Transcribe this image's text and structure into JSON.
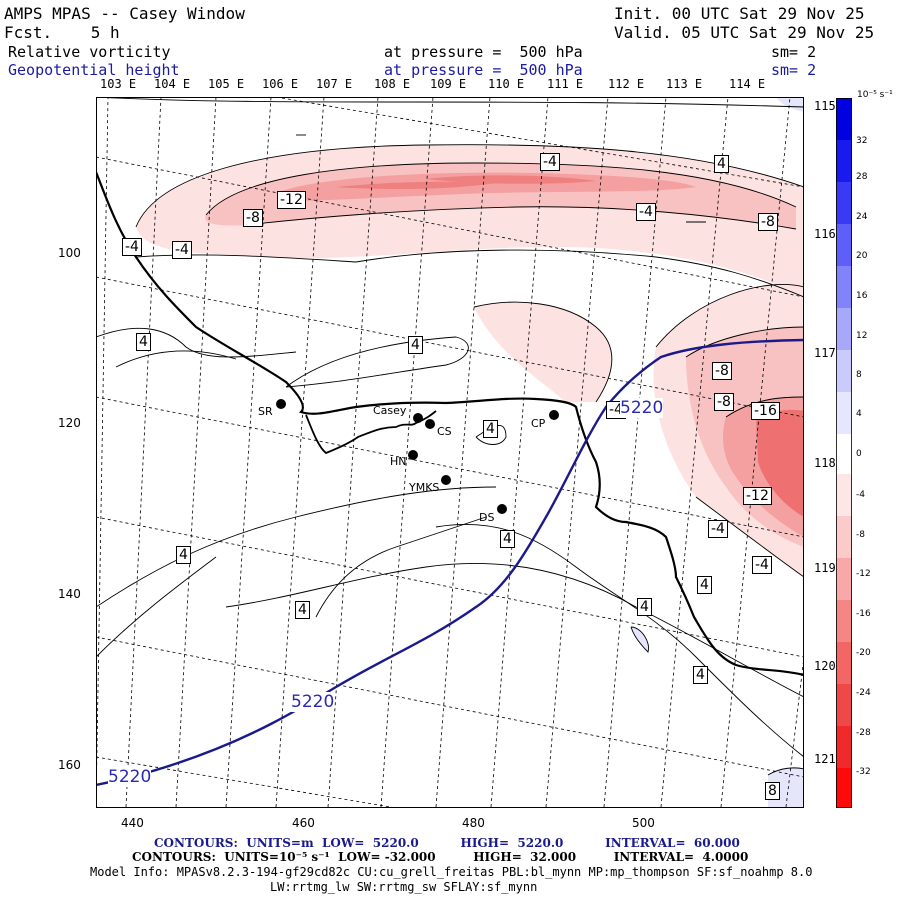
{
  "header": {
    "title": "AMPS MPAS -- Casey Window",
    "forecast": "Fcst.    5 h",
    "init": "Init. 00 UTC Sat 29 Nov 25",
    "valid": "Valid. 05 UTC Sat 29 Nov 25",
    "field1": {
      "name": "Relative vorticity",
      "level": "at pressure =  500 hPa",
      "sm": "sm= 2"
    },
    "field2": {
      "name": "Geopotential height",
      "level": "at pressure =  500 hPa",
      "sm": "sm= 2"
    }
  },
  "map": {
    "top_lon_labels": [
      "103 E",
      "104 E",
      "105 E",
      "106 E",
      "107 E",
      "108 E",
      "109 E",
      "110 E",
      "111 E",
      "112 E",
      "113 E",
      "114 E"
    ],
    "right_lon_labels": [
      "115 E",
      "116 E",
      "117 E",
      "118 E",
      "119 E",
      "120 E",
      "121 E"
    ],
    "x_ticks": [
      "440",
      "460",
      "480",
      "500"
    ],
    "y_ticks": [
      "100",
      "120",
      "140",
      "160"
    ],
    "stations": [
      "SR",
      "Casey",
      "CS",
      "HN",
      "YMKS",
      "DS",
      "CP"
    ],
    "height_contour_label": "5220",
    "vorticity_labels": [
      "-4",
      "4",
      "-8",
      "-12",
      "-16"
    ]
  },
  "colorbar": {
    "units": "10⁻⁵ s⁻¹",
    "ticks": [
      "32",
      "28",
      "24",
      "20",
      "16",
      "12",
      "8",
      "4",
      "0",
      "-4",
      "-8",
      "-12",
      "-16",
      "-20",
      "-24",
      "-28",
      "-32"
    ],
    "positive_color": "#0000e6",
    "negative_color": "#ff1a1a"
  },
  "footer": {
    "contours1": "CONTOURS:  UNITS=m  LOW=  5220.0          HIGH=  5220.0          INTERVAL=  60.000",
    "contours2": "CONTOURS:  UNITS=10⁻⁵ s⁻¹  LOW= -32.000         HIGH=  32.000         INTERVAL=  4.0000",
    "model_info": "Model Info: MPASv8.2.3-194-gf29cd82c CU:cu_grell_freitas PBL:bl_mynn MP:mp_thompson SF:sf_noahmp 8.0",
    "model_info2": "LW:rrtmg_lw SW:rrtmg_sw SFLAY:sf_mynn"
  }
}
